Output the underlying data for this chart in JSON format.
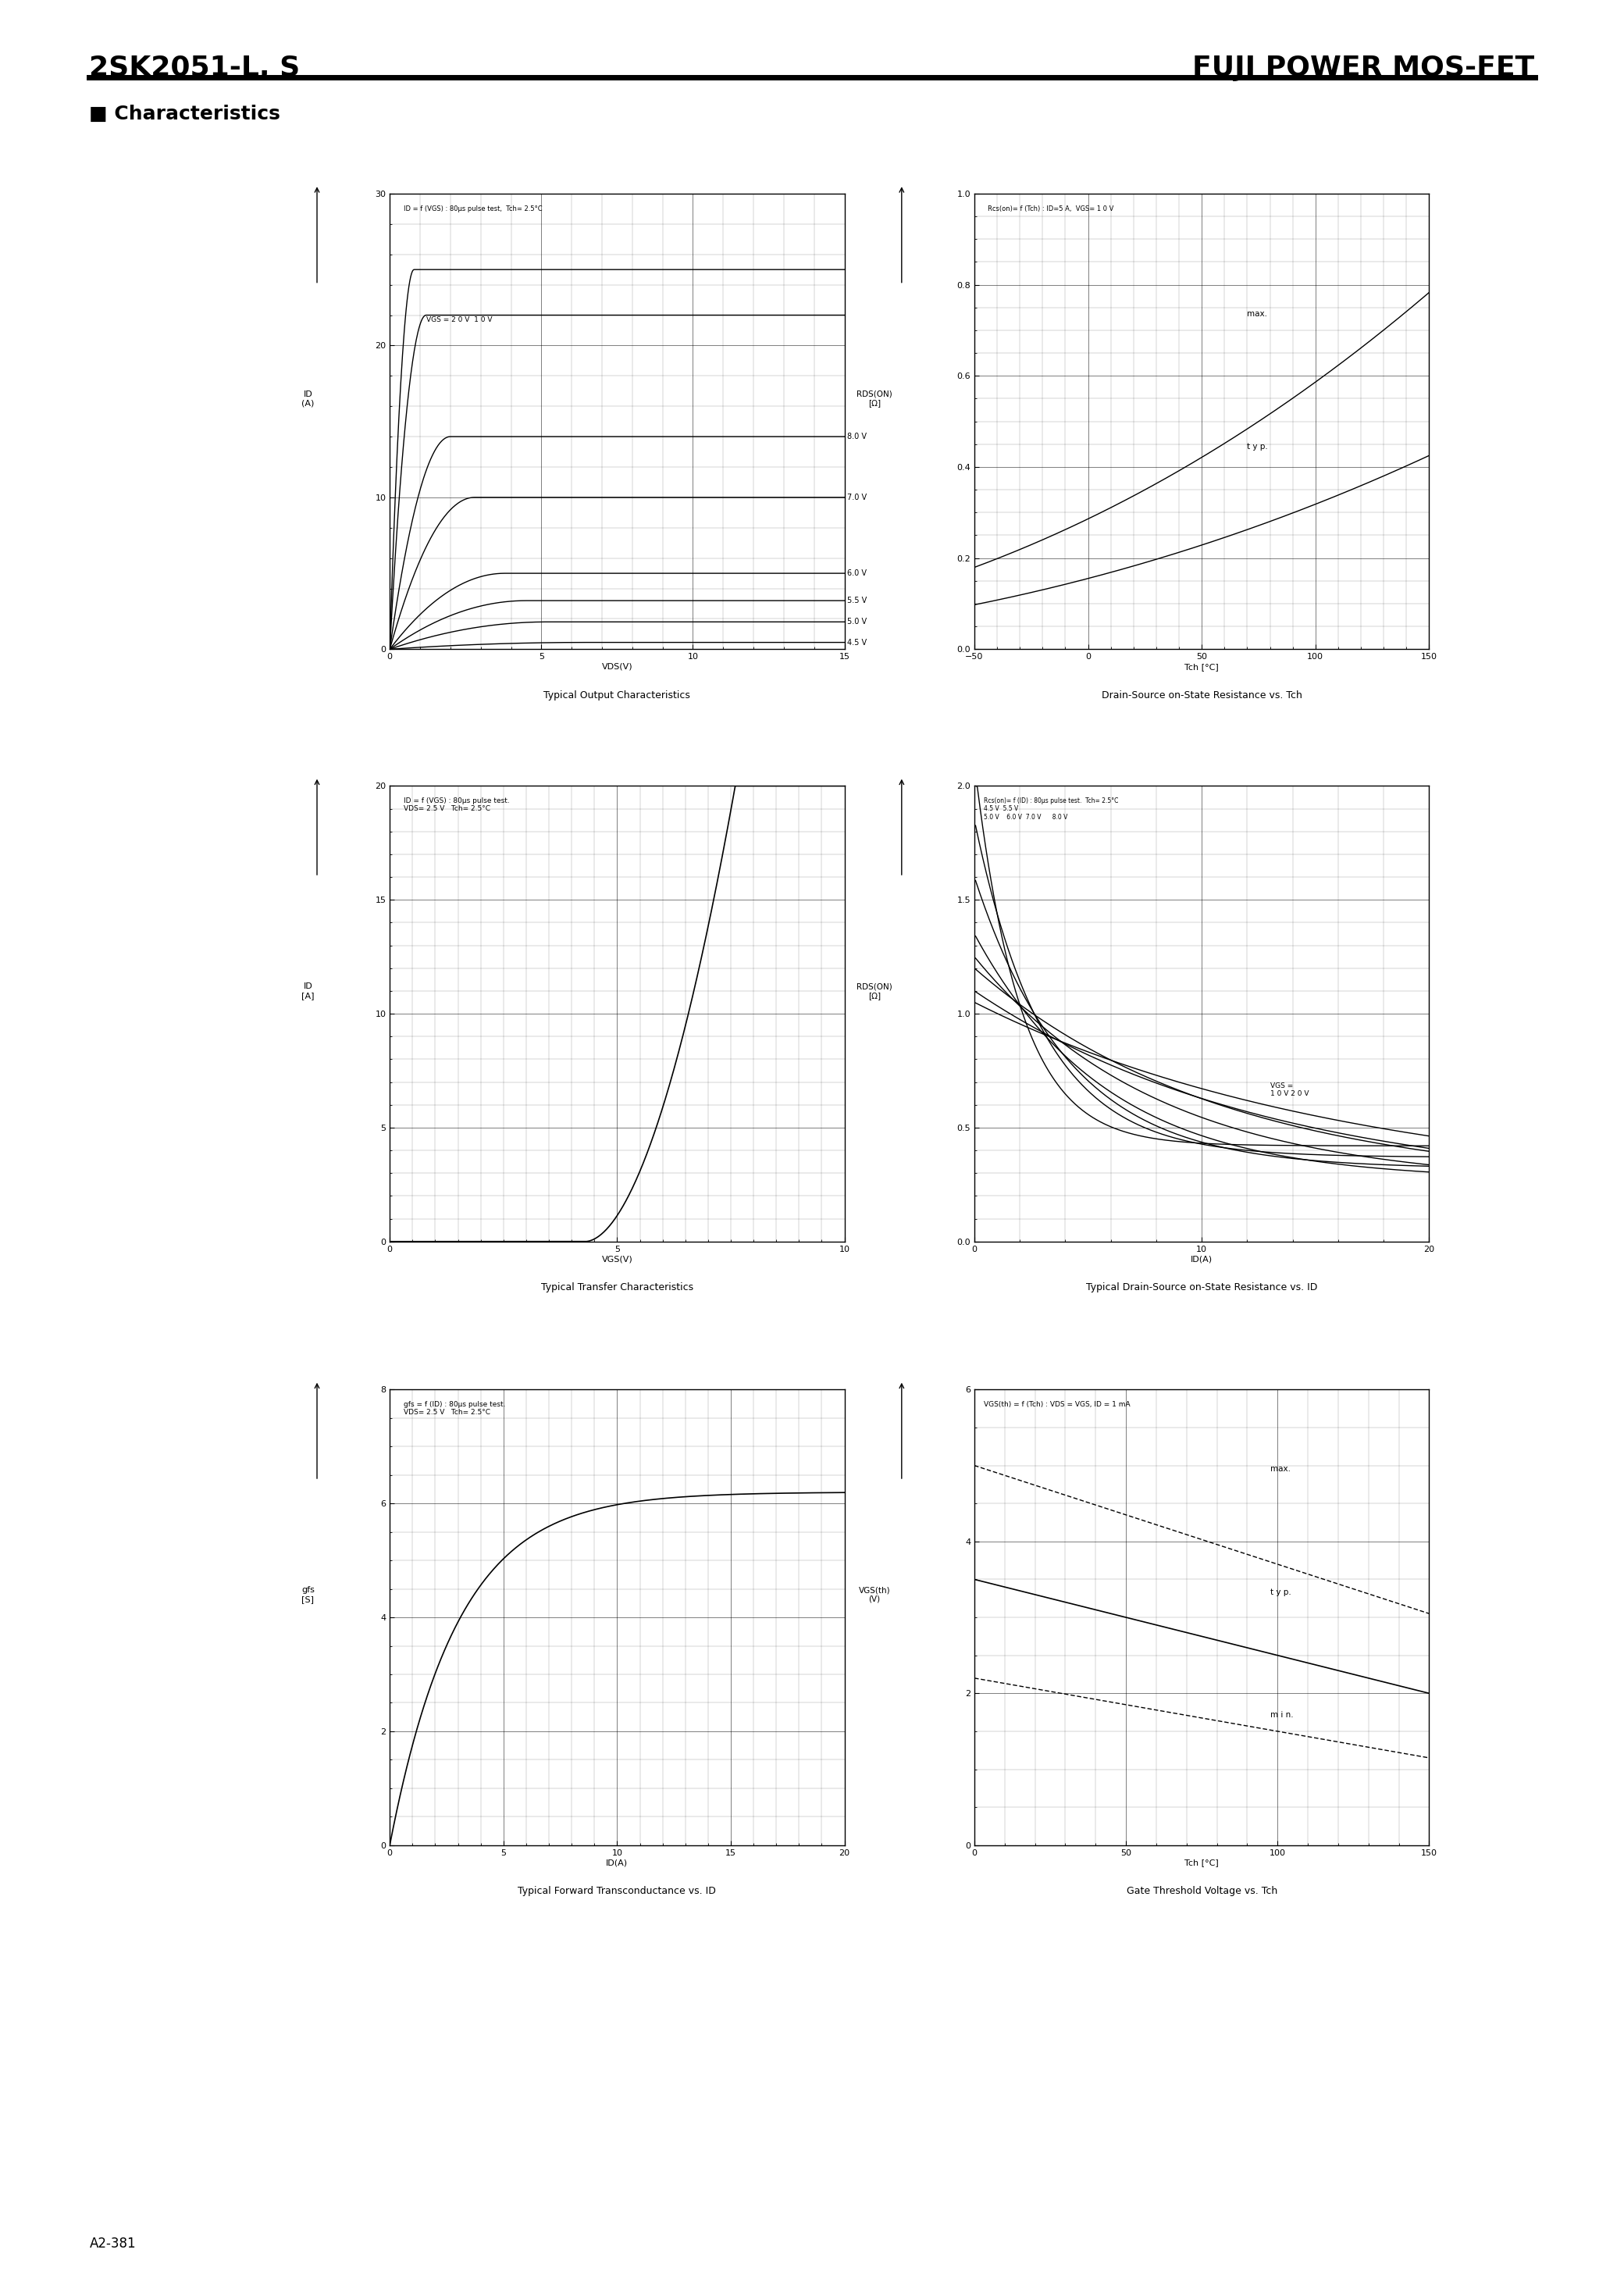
{
  "title_left": "2SK2051-L, S",
  "title_right": "FUJI POWER MOS-FET",
  "section_title": "■ Characteristics",
  "footer": "A2-381",
  "bg_color": "#ffffff",
  "graphs": [
    {
      "title": "Typical Output Characteristics",
      "xlabel": "VDS(V)",
      "ylabel1": "ID",
      "ylabel2": "(A)",
      "annotation": "ID = f (VGS) : 80μs pulse test,  Tch= 2.5°C",
      "label_vgs": "VGS = 2 0 V  1 0 V",
      "xlim": [
        0,
        15
      ],
      "ylim": [
        0,
        30
      ],
      "xticks": [
        0,
        5,
        10,
        15
      ],
      "yticks": [
        0,
        10,
        20,
        30
      ],
      "xminor": 1,
      "yminor": 2
    },
    {
      "title": "Drain-Source on-State Resistance vs. Tch",
      "xlabel": "Tch [°C]",
      "ylabel1": "RDS(ON)",
      "ylabel2": "[Ω]",
      "annotation": "Rcs(on)= f (Tch) : ID=5 A,  VGS= 1 0 V",
      "xlim": [
        -50,
        150
      ],
      "ylim": [
        0,
        1.0
      ],
      "xticks": [
        -50,
        0,
        50,
        100,
        150
      ],
      "yticks": [
        0,
        0.2,
        0.4,
        0.6,
        0.8,
        1.0
      ],
      "xminor": 10,
      "yminor": 0.05
    },
    {
      "title": "Typical Transfer Characteristics",
      "xlabel": "VGS(V)",
      "ylabel1": "ID",
      "ylabel2": "[A]",
      "annotation": "ID = f (VGS) : 80μs pulse test.\nVDS= 2.5 V   Tch= 2.5°C",
      "xlim": [
        0,
        10
      ],
      "ylim": [
        0,
        20
      ],
      "xticks": [
        0,
        5,
        10
      ],
      "yticks": [
        0,
        5,
        10,
        15,
        20
      ],
      "xminor": 0.5,
      "yminor": 1
    },
    {
      "title": "Typical Drain-Source on-State Resistance vs. ID",
      "xlabel": "ID(A)",
      "ylabel1": "RDS(ON)",
      "ylabel2": "[Ω]",
      "annotation": "Rcs(on)= f (ID) : 80μs pulse test.  Tch= 2.5°C",
      "xlim": [
        0,
        20
      ],
      "ylim": [
        0,
        2.0
      ],
      "xticks": [
        0,
        10,
        20
      ],
      "yticks": [
        0,
        0.5,
        1.0,
        1.5,
        2.0
      ],
      "xminor": 2,
      "yminor": 0.1
    },
    {
      "title": "Typical Forward Transconductance vs. ID",
      "xlabel": "ID(A)",
      "ylabel1": "gfs",
      "ylabel2": "[S]",
      "annotation": "gfs = f (ID) : 80μs pulse test.\nVDS= 2.5 V   Tch= 2.5°C",
      "xlim": [
        0,
        20
      ],
      "ylim": [
        0,
        8
      ],
      "xticks": [
        0,
        5,
        10,
        15,
        20
      ],
      "yticks": [
        0,
        2,
        4,
        6,
        8
      ],
      "xminor": 1,
      "yminor": 0.5
    },
    {
      "title": "Gate Threshold Voltage vs. Tch",
      "xlabel": "Tch [°C]",
      "ylabel1": "VGS(th)",
      "ylabel2": "(V)",
      "annotation": "VGS(th) = f (Tch) : VDS = VGS, ID = 1 mA",
      "xlim": [
        0,
        150
      ],
      "ylim": [
        0,
        6
      ],
      "xticks": [
        0,
        50,
        100,
        150
      ],
      "yticks": [
        0,
        2,
        4,
        6
      ],
      "xminor": 10,
      "yminor": 0.5
    }
  ]
}
